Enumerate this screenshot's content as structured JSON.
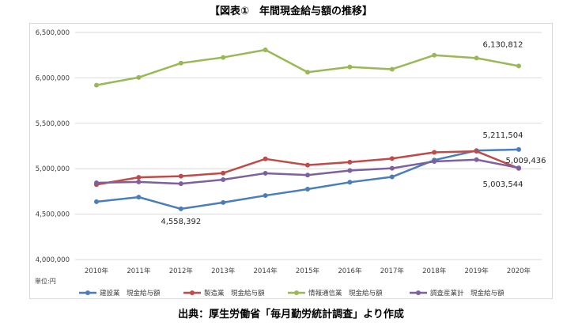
{
  "title": "【図表①　年間現金給与額の推移】",
  "source": "出典：厚生労働省「毎月勤労統計調査」より作成",
  "chart_data": {
    "type": "line",
    "title": "【図表①　年間現金給与額の推移】",
    "unit_label": "単位:円",
    "categories": [
      "2010年",
      "2011年",
      "2012年",
      "2013年",
      "2014年",
      "2015年",
      "2016年",
      "2017年",
      "2018年",
      "2019年",
      "2020年"
    ],
    "ylim": [
      4000000,
      6500000
    ],
    "yticks": [
      4000000,
      4500000,
      5000000,
      5500000,
      6000000,
      6500000
    ],
    "ytick_labels": [
      "4,000,000",
      "4,500,000",
      "5,000,000",
      "5,500,000",
      "6,000,000",
      "6,500,000"
    ],
    "grid": true,
    "legend_position": "bottom",
    "series": [
      {
        "name": "建設業　現金給与額",
        "color": "#4a7ebb",
        "values": [
          4637000,
          4687000,
          4558392,
          4628000,
          4705000,
          4775000,
          4851000,
          4910000,
          5095000,
          5200000,
          5211504
        ]
      },
      {
        "name": "製造業　現金給与額",
        "color": "#be4b48",
        "values": [
          4825000,
          4905000,
          4918000,
          4952000,
          5108000,
          5040000,
          5072000,
          5112000,
          5180000,
          5192000,
          5003544
        ]
      },
      {
        "name": "情報通信業　現金給与額",
        "color": "#98b954",
        "values": [
          5920000,
          6005000,
          6162000,
          6225000,
          6308000,
          6062000,
          6120000,
          6095000,
          6250000,
          6218000,
          6130812
        ]
      },
      {
        "name": "調査産業計　現金給与額",
        "color": "#7d60a0",
        "values": [
          4845000,
          4855000,
          4835000,
          4880000,
          4950000,
          4930000,
          4980000,
          5005000,
          5080000,
          5100000,
          5009436
        ]
      }
    ],
    "annotations": [
      {
        "series": 0,
        "index": 2,
        "text": "4,558,392"
      },
      {
        "series": 2,
        "index": 10,
        "text": "6,130,812"
      },
      {
        "series": 0,
        "index": 10,
        "text": "5,211,504"
      },
      {
        "series": 3,
        "index": 10,
        "text": "5,009,436"
      },
      {
        "series": 1,
        "index": 10,
        "text": "5,003,544"
      }
    ]
  }
}
